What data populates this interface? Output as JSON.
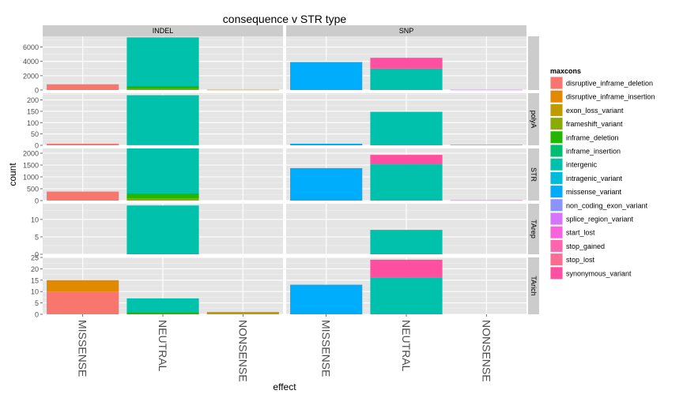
{
  "chart_data": {
    "type": "bar",
    "stacked": true,
    "title": "consequence v STR type",
    "xlabel": "effect",
    "ylabel": "count",
    "facet_columns": [
      "INDEL",
      "SNP"
    ],
    "facet_rows": [
      "",
      "polyA",
      "STR",
      "TArep",
      "TArich"
    ],
    "categories": [
      "MISSENSE",
      "NEUTRAL",
      "NONSENSE"
    ],
    "grid": true,
    "legend_position": "right",
    "legend": {
      "title": "maxcons",
      "entries": [
        {
          "name": "disruptive_inframe_deletion",
          "color": "#F8766D"
        },
        {
          "name": "disruptive_inframe_insertion",
          "color": "#E18A00"
        },
        {
          "name": "exon_loss_variant",
          "color": "#BE9C00"
        },
        {
          "name": "frameshift_variant",
          "color": "#8CAB00"
        },
        {
          "name": "inframe_deletion",
          "color": "#24B700"
        },
        {
          "name": "inframe_insertion",
          "color": "#00BE70"
        },
        {
          "name": "intergenic",
          "color": "#00C1AB"
        },
        {
          "name": "intragenic_variant",
          "color": "#00BBDA"
        },
        {
          "name": "missense_variant",
          "color": "#00ACFC"
        },
        {
          "name": "non_coding_exon_variant",
          "color": "#8B93FF"
        },
        {
          "name": "splice_region_variant",
          "color": "#D575FE"
        },
        {
          "name": "start_lost",
          "color": "#F962DD"
        },
        {
          "name": "stop_gained",
          "color": "#FF65AC"
        },
        {
          "name": "stop_lost",
          "color": "#FF6C91"
        },
        {
          "name": "synonymous_variant",
          "color": "#FF4FA0"
        }
      ]
    },
    "panels": [
      {
        "row": 0,
        "col": 0,
        "ylim": [
          0,
          7500
        ],
        "yticks": [
          0,
          2000,
          4000,
          6000
        ],
        "bars": [
          {
            "category": "MISSENSE",
            "segments": [
              {
                "series": "disruptive_inframe_deletion",
                "value": 800
              }
            ]
          },
          {
            "category": "NEUTRAL",
            "segments": [
              {
                "series": "frameshift_variant",
                "value": 150
              },
              {
                "series": "inframe_deletion",
                "value": 400
              },
              {
                "series": "intergenic",
                "value": 6800
              }
            ]
          },
          {
            "category": "NONSENSE",
            "segments": [
              {
                "series": "exon_loss_variant",
                "value": 40
              }
            ]
          }
        ]
      },
      {
        "row": 0,
        "col": 1,
        "ylim": [
          0,
          7500
        ],
        "yticks": [
          0,
          2000,
          4000,
          6000
        ],
        "bars": [
          {
            "category": "MISSENSE",
            "segments": [
              {
                "series": "missense_variant",
                "value": 3900
              }
            ]
          },
          {
            "category": "NEUTRAL",
            "segments": [
              {
                "series": "intergenic",
                "value": 3000
              },
              {
                "series": "synonymous_variant",
                "value": 1500
              }
            ]
          },
          {
            "category": "NONSENSE",
            "segments": [
              {
                "series": "start_lost",
                "value": 40
              }
            ]
          }
        ]
      },
      {
        "row": 1,
        "col": 0,
        "ylim": [
          0,
          230
        ],
        "yticks": [
          0,
          50,
          100,
          150,
          200
        ],
        "bars": [
          {
            "category": "MISSENSE",
            "segments": [
              {
                "series": "disruptive_inframe_deletion",
                "value": 7
              }
            ]
          },
          {
            "category": "NEUTRAL",
            "segments": [
              {
                "series": "frameshift_variant",
                "value": 3
              },
              {
                "series": "intergenic",
                "value": 218
              }
            ]
          },
          {
            "category": "NONSENSE",
            "segments": []
          }
        ]
      },
      {
        "row": 1,
        "col": 1,
        "ylim": [
          0,
          230
        ],
        "yticks": [
          0,
          50,
          100,
          150,
          200
        ],
        "bars": [
          {
            "category": "MISSENSE",
            "segments": [
              {
                "series": "missense_variant",
                "value": 7
              }
            ]
          },
          {
            "category": "NEUTRAL",
            "segments": [
              {
                "series": "intergenic",
                "value": 148
              }
            ]
          },
          {
            "category": "NONSENSE",
            "segments": [
              {
                "series": "synonymous_variant",
                "value": 2
              }
            ]
          }
        ]
      },
      {
        "row": 2,
        "col": 0,
        "ylim": [
          0,
          2200
        ],
        "yticks": [
          0,
          500,
          1000,
          1500,
          2000
        ],
        "bars": [
          {
            "category": "MISSENSE",
            "segments": [
              {
                "series": "disruptive_inframe_deletion",
                "value": 380
              }
            ]
          },
          {
            "category": "NEUTRAL",
            "segments": [
              {
                "series": "frameshift_variant",
                "value": 100
              },
              {
                "series": "inframe_deletion",
                "value": 200
              },
              {
                "series": "intergenic",
                "value": 1900
              }
            ]
          },
          {
            "category": "NONSENSE",
            "segments": []
          }
        ]
      },
      {
        "row": 2,
        "col": 1,
        "ylim": [
          0,
          2200
        ],
        "yticks": [
          0,
          500,
          1000,
          1500,
          2000
        ],
        "bars": [
          {
            "category": "MISSENSE",
            "segments": [
              {
                "series": "missense_variant",
                "value": 1370
              }
            ]
          },
          {
            "category": "NEUTRAL",
            "segments": [
              {
                "series": "intergenic",
                "value": 1530
              },
              {
                "series": "synonymous_variant",
                "value": 400
              }
            ]
          },
          {
            "category": "NONSENSE",
            "segments": [
              {
                "series": "start_lost",
                "value": 15
              }
            ]
          }
        ]
      },
      {
        "row": 3,
        "col": 0,
        "ylim": [
          0,
          14.5
        ],
        "yticks": [
          0,
          5,
          10
        ],
        "bars": [
          {
            "category": "MISSENSE",
            "segments": []
          },
          {
            "category": "NEUTRAL",
            "segments": [
              {
                "series": "intergenic",
                "value": 14
              }
            ]
          },
          {
            "category": "NONSENSE",
            "segments": []
          }
        ]
      },
      {
        "row": 3,
        "col": 1,
        "ylim": [
          0,
          14.5
        ],
        "yticks": [
          0,
          5,
          10
        ],
        "bars": [
          {
            "category": "MISSENSE",
            "segments": []
          },
          {
            "category": "NEUTRAL",
            "segments": [
              {
                "series": "intergenic",
                "value": 7
              }
            ]
          },
          {
            "category": "NONSENSE",
            "segments": []
          }
        ]
      },
      {
        "row": 4,
        "col": 0,
        "ylim": [
          0,
          25
        ],
        "yticks": [
          0,
          5,
          10,
          15,
          20,
          25
        ],
        "bars": [
          {
            "category": "MISSENSE",
            "segments": [
              {
                "series": "disruptive_inframe_deletion",
                "value": 10
              },
              {
                "series": "disruptive_inframe_insertion",
                "value": 5
              }
            ]
          },
          {
            "category": "NEUTRAL",
            "segments": [
              {
                "series": "inframe_deletion",
                "value": 1
              },
              {
                "series": "intergenic",
                "value": 6
              }
            ]
          },
          {
            "category": "NONSENSE",
            "segments": [
              {
                "series": "exon_loss_variant",
                "value": 1
              }
            ]
          }
        ]
      },
      {
        "row": 4,
        "col": 1,
        "ylim": [
          0,
          25
        ],
        "yticks": [
          0,
          5,
          10,
          15,
          20,
          25
        ],
        "bars": [
          {
            "category": "MISSENSE",
            "segments": [
              {
                "series": "missense_variant",
                "value": 13
              }
            ]
          },
          {
            "category": "NEUTRAL",
            "segments": [
              {
                "series": "intergenic",
                "value": 16
              },
              {
                "series": "synonymous_variant",
                "value": 8
              }
            ]
          },
          {
            "category": "NONSENSE",
            "segments": []
          }
        ]
      }
    ]
  }
}
